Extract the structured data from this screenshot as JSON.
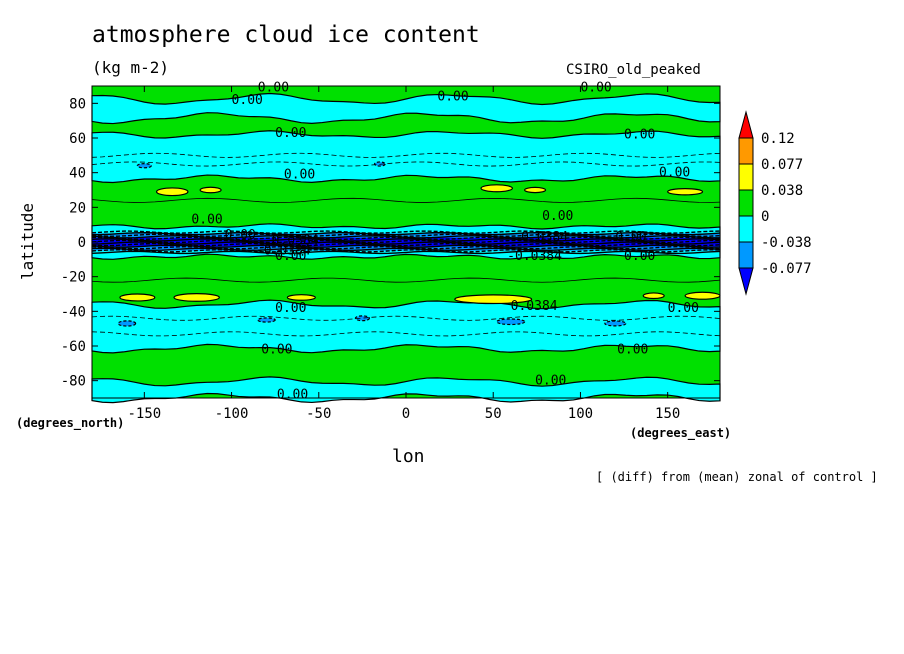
{
  "chart_data": {
    "type": "heatmap",
    "title": "atmosphere cloud ice content",
    "units": "(kg m-2)",
    "model": "CSIRO_old_peaked",
    "xlabel": "lon",
    "ylabel": "latitude",
    "x_units": "(degrees_east)",
    "y_units": "(degrees_north)",
    "note": "[ (diff) from (mean) zonal of control ]",
    "xlim": [
      -180,
      180
    ],
    "ylim": [
      -90,
      90
    ],
    "x_ticks": [
      -150,
      -100,
      -50,
      0,
      50,
      100,
      150
    ],
    "y_ticks": [
      80,
      60,
      40,
      20,
      0,
      -20,
      -40,
      -60,
      -80
    ],
    "legend": {
      "levels": [
        "0.12",
        "0.077",
        "0.038",
        "0",
        "-0.038",
        "-0.077"
      ],
      "colors": [
        "#ff0000",
        "#ff9900",
        "#ffff00",
        "#00e000",
        "#00ffff",
        "#0099ff",
        "#0000ff"
      ]
    },
    "bands": [
      {
        "lat": [
          82,
          90
        ],
        "value": "0 to 0.038"
      },
      {
        "lat": [
          72,
          82
        ],
        "value": "-0.038 to 0"
      },
      {
        "lat": [
          63,
          72
        ],
        "value": "0 to 0.038"
      },
      {
        "lat": [
          36,
          63
        ],
        "value": "-0.038 to 0"
      },
      {
        "lat": [
          8,
          36
        ],
        "value": "0 to 0.038",
        "patches": "0.038 to 0.077 near 30"
      },
      {
        "lat": [
          -8,
          8
        ],
        "value": "-0.077 to -0.038"
      },
      {
        "lat": [
          -36,
          -8
        ],
        "value": "0 to 0.038",
        "patches": "0.038 to 0.077 near -32"
      },
      {
        "lat": [
          -62,
          -36
        ],
        "value": "-0.038 to 0"
      },
      {
        "lat": [
          -80,
          -62
        ],
        "value": "0 to 0.038"
      },
      {
        "lat": [
          -90,
          -80
        ],
        "value": "-0.038 to 0"
      }
    ],
    "contour_labels": [
      "0.00",
      "0.0384",
      "-0.0384"
    ]
  }
}
